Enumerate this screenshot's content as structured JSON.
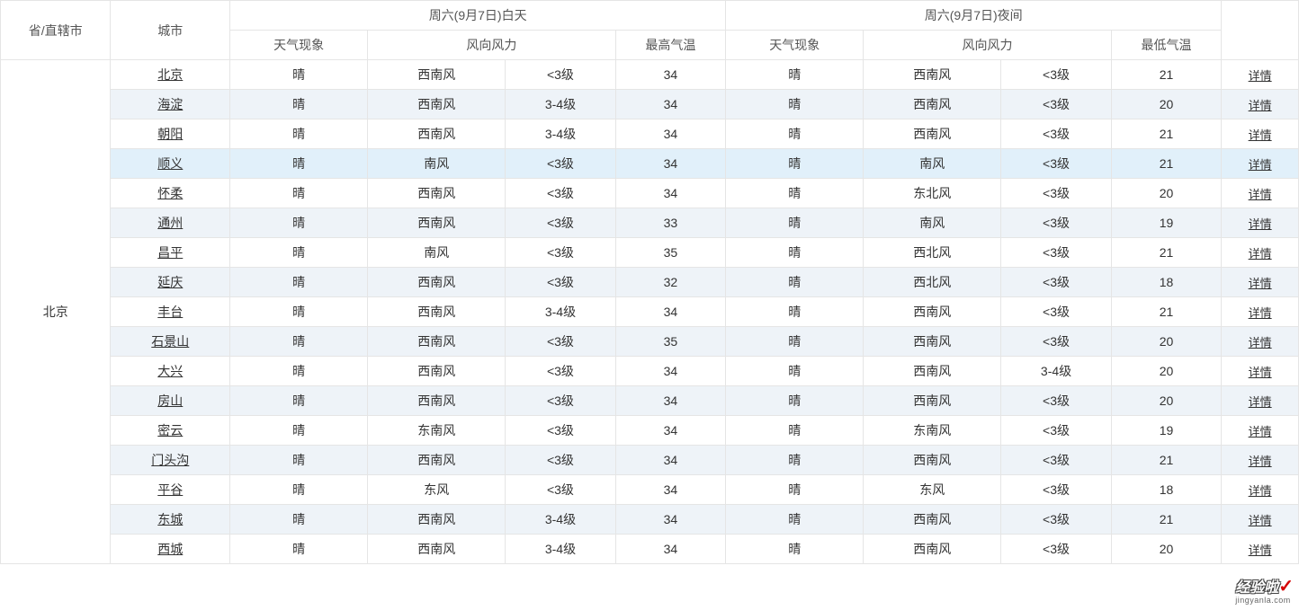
{
  "colors": {
    "border": "#e5e5e5",
    "row_even_bg": "#ffffff",
    "row_odd_bg": "#eef3f8",
    "row_hover_bg": "#e1f0fa",
    "text": "#333333",
    "header_text": "#555555",
    "watermark_accent": "#d40000"
  },
  "header": {
    "province": "省/直辖市",
    "city": "城市",
    "day_group": "周六(9月7日)白天",
    "night_group": "周六(9月7日)夜间",
    "phenomenon": "天气现象",
    "wind": "风向风力",
    "high_temp": "最高气温",
    "low_temp": "最低气温",
    "detail": "详情"
  },
  "province_label": "北京",
  "highlight_row_index": 3,
  "rows": [
    {
      "city": "北京",
      "d_phen": "晴",
      "d_wdir": "西南风",
      "d_wlev": "<3级",
      "d_temp": "34",
      "n_phen": "晴",
      "n_wdir": "西南风",
      "n_wlev": "<3级",
      "n_temp": "21"
    },
    {
      "city": "海淀",
      "d_phen": "晴",
      "d_wdir": "西南风",
      "d_wlev": "3-4级",
      "d_temp": "34",
      "n_phen": "晴",
      "n_wdir": "西南风",
      "n_wlev": "<3级",
      "n_temp": "20"
    },
    {
      "city": "朝阳",
      "d_phen": "晴",
      "d_wdir": "西南风",
      "d_wlev": "3-4级",
      "d_temp": "34",
      "n_phen": "晴",
      "n_wdir": "西南风",
      "n_wlev": "<3级",
      "n_temp": "21"
    },
    {
      "city": "顺义",
      "d_phen": "晴",
      "d_wdir": "南风",
      "d_wlev": "<3级",
      "d_temp": "34",
      "n_phen": "晴",
      "n_wdir": "南风",
      "n_wlev": "<3级",
      "n_temp": "21"
    },
    {
      "city": "怀柔",
      "d_phen": "晴",
      "d_wdir": "西南风",
      "d_wlev": "<3级",
      "d_temp": "34",
      "n_phen": "晴",
      "n_wdir": "东北风",
      "n_wlev": "<3级",
      "n_temp": "20"
    },
    {
      "city": "通州",
      "d_phen": "晴",
      "d_wdir": "西南风",
      "d_wlev": "<3级",
      "d_temp": "33",
      "n_phen": "晴",
      "n_wdir": "南风",
      "n_wlev": "<3级",
      "n_temp": "19"
    },
    {
      "city": "昌平",
      "d_phen": "晴",
      "d_wdir": "南风",
      "d_wlev": "<3级",
      "d_temp": "35",
      "n_phen": "晴",
      "n_wdir": "西北风",
      "n_wlev": "<3级",
      "n_temp": "21"
    },
    {
      "city": "延庆",
      "d_phen": "晴",
      "d_wdir": "西南风",
      "d_wlev": "<3级",
      "d_temp": "32",
      "n_phen": "晴",
      "n_wdir": "西北风",
      "n_wlev": "<3级",
      "n_temp": "18"
    },
    {
      "city": "丰台",
      "d_phen": "晴",
      "d_wdir": "西南风",
      "d_wlev": "3-4级",
      "d_temp": "34",
      "n_phen": "晴",
      "n_wdir": "西南风",
      "n_wlev": "<3级",
      "n_temp": "21"
    },
    {
      "city": "石景山",
      "d_phen": "晴",
      "d_wdir": "西南风",
      "d_wlev": "<3级",
      "d_temp": "35",
      "n_phen": "晴",
      "n_wdir": "西南风",
      "n_wlev": "<3级",
      "n_temp": "20"
    },
    {
      "city": "大兴",
      "d_phen": "晴",
      "d_wdir": "西南风",
      "d_wlev": "<3级",
      "d_temp": "34",
      "n_phen": "晴",
      "n_wdir": "西南风",
      "n_wlev": "3-4级",
      "n_temp": "20"
    },
    {
      "city": "房山",
      "d_phen": "晴",
      "d_wdir": "西南风",
      "d_wlev": "<3级",
      "d_temp": "34",
      "n_phen": "晴",
      "n_wdir": "西南风",
      "n_wlev": "<3级",
      "n_temp": "20"
    },
    {
      "city": "密云",
      "d_phen": "晴",
      "d_wdir": "东南风",
      "d_wlev": "<3级",
      "d_temp": "34",
      "n_phen": "晴",
      "n_wdir": "东南风",
      "n_wlev": "<3级",
      "n_temp": "19"
    },
    {
      "city": "门头沟",
      "d_phen": "晴",
      "d_wdir": "西南风",
      "d_wlev": "<3级",
      "d_temp": "34",
      "n_phen": "晴",
      "n_wdir": "西南风",
      "n_wlev": "<3级",
      "n_temp": "21"
    },
    {
      "city": "平谷",
      "d_phen": "晴",
      "d_wdir": "东风",
      "d_wlev": "<3级",
      "d_temp": "34",
      "n_phen": "晴",
      "n_wdir": "东风",
      "n_wlev": "<3级",
      "n_temp": "18"
    },
    {
      "city": "东城",
      "d_phen": "晴",
      "d_wdir": "西南风",
      "d_wlev": "3-4级",
      "d_temp": "34",
      "n_phen": "晴",
      "n_wdir": "西南风",
      "n_wlev": "<3级",
      "n_temp": "21"
    },
    {
      "city": "西城",
      "d_phen": "晴",
      "d_wdir": "西南风",
      "d_wlev": "3-4级",
      "d_temp": "34",
      "n_phen": "晴",
      "n_wdir": "西南风",
      "n_wlev": "<3级",
      "n_temp": "20"
    }
  ],
  "watermark": {
    "main": "经验啦",
    "accent": "✓",
    "sub": "jingyanla.com"
  }
}
